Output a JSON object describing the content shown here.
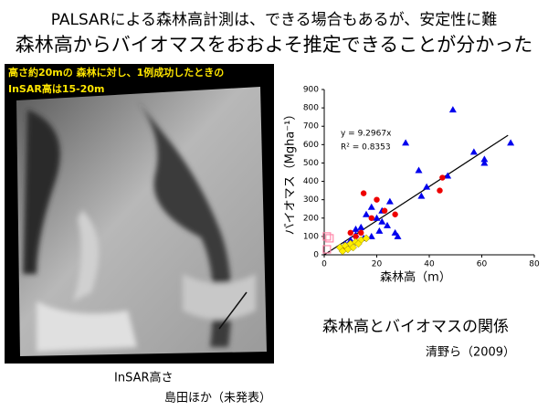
{
  "slide": {
    "headline": "PALSARによる森林高計測は、できる場合もあるが、安定性に難",
    "subheadline": "森林高からバイオマスをおおよそ推定できることが分かった",
    "image_note_1": "高さ約20mの 森林に対し、1例成功したときの",
    "image_note_2": "InSAR高は15-20m",
    "image_caption": "InSAR高さ",
    "image_source": "島田ほか（未発表）",
    "chart_caption": "森林高とバイオマスの関係",
    "chart_source": "清野ら（2009）"
  },
  "chart_data": {
    "type": "scatter",
    "x_label": "森林高（m）",
    "y_label": "バイオマス（Mgha⁻¹）",
    "xlim": [
      0,
      80
    ],
    "xticks": [
      0,
      20,
      40,
      60,
      80
    ],
    "ylim": [
      0,
      900
    ],
    "yticks": [
      0,
      100,
      200,
      300,
      400,
      500,
      600,
      700,
      800,
      900
    ],
    "trendline": {
      "equation": "y = 9.2967x",
      "r2": "R² = 0.8353",
      "slope": 9.2967,
      "x_range": [
        0,
        70
      ],
      "color": "#000000"
    },
    "series": [
      {
        "marker": "triangle",
        "color": "#0000ee",
        "x": [
          49,
          31,
          57,
          61,
          61,
          71,
          36,
          47,
          39,
          37,
          25,
          22,
          18,
          16,
          20,
          24,
          27,
          14,
          12,
          10,
          15,
          18,
          8,
          21,
          28,
          12,
          22
        ],
        "y": [
          790,
          610,
          560,
          520,
          500,
          610,
          460,
          430,
          370,
          320,
          290,
          240,
          260,
          220,
          200,
          160,
          120,
          150,
          110,
          80,
          90,
          100,
          60,
          130,
          100,
          140,
          180
        ]
      },
      {
        "marker": "circle",
        "color": "#ee0000",
        "x": [
          15,
          20,
          23,
          27,
          44,
          45,
          10,
          12,
          18,
          8,
          14
        ],
        "y": [
          335,
          300,
          240,
          220,
          350,
          420,
          120,
          100,
          200,
          40,
          120
        ]
      },
      {
        "marker": "diamond",
        "color": "#ffee00",
        "x": [
          6,
          8,
          10,
          12,
          14,
          9,
          11,
          16,
          7,
          13
        ],
        "y": [
          40,
          50,
          60,
          70,
          80,
          30,
          40,
          90,
          20,
          60
        ]
      },
      {
        "marker": "square",
        "color": "#ff88aa",
        "x": [
          1,
          2,
          1
        ],
        "y": [
          30,
          90,
          100
        ]
      }
    ]
  }
}
